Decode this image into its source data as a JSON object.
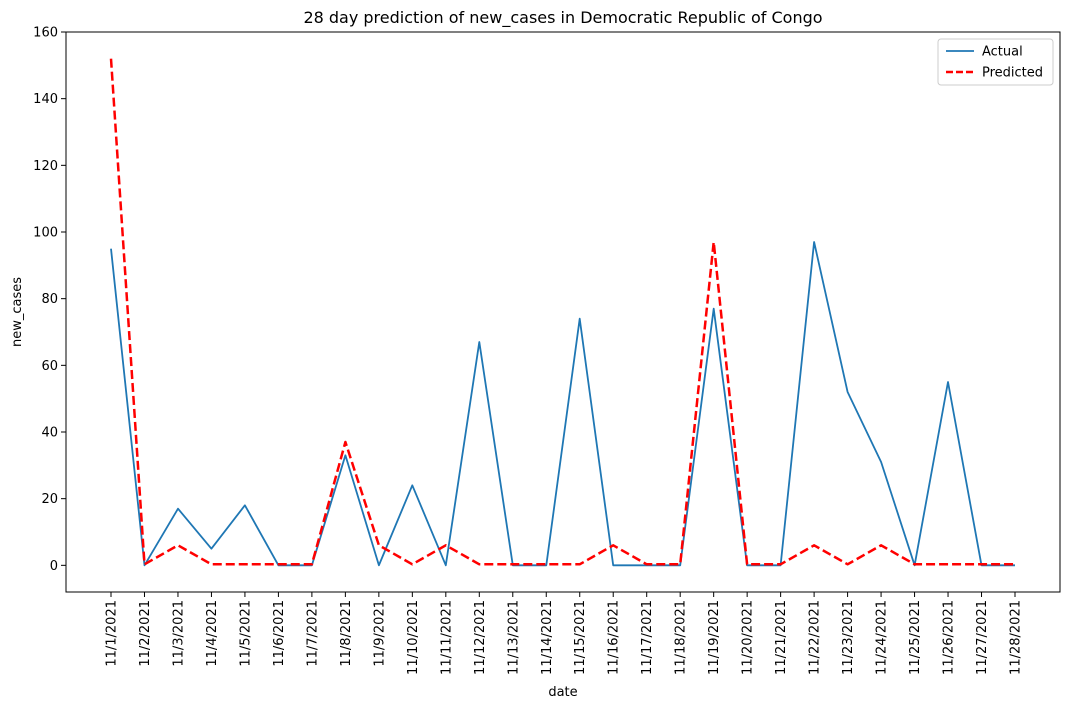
{
  "chart_data": {
    "type": "line",
    "title": "28 day prediction of new_cases in Democratic Republic of Congo",
    "xlabel": "date",
    "ylabel": "new_cases",
    "ylim": [
      -8,
      160
    ],
    "yticks": [
      0,
      20,
      40,
      60,
      80,
      100,
      120,
      140,
      160
    ],
    "grid": false,
    "legend_position": "top-right",
    "categories": [
      "11/1/2021",
      "11/2/2021",
      "11/3/2021",
      "11/4/2021",
      "11/5/2021",
      "11/6/2021",
      "11/7/2021",
      "11/8/2021",
      "11/9/2021",
      "11/10/2021",
      "11/11/2021",
      "11/12/2021",
      "11/13/2021",
      "11/14/2021",
      "11/15/2021",
      "11/16/2021",
      "11/17/2021",
      "11/18/2021",
      "11/19/2021",
      "11/20/2021",
      "11/21/2021",
      "11/22/2021",
      "11/23/2021",
      "11/24/2021",
      "11/25/2021",
      "11/26/2021",
      "11/27/2021",
      "11/28/2021"
    ],
    "series": [
      {
        "name": "Actual",
        "color": "#1f77b4",
        "style": "solid",
        "values": [
          95,
          0,
          17,
          5,
          18,
          0,
          0,
          33,
          0,
          24,
          0,
          67,
          0,
          0,
          74,
          0,
          0,
          0,
          77,
          0,
          0,
          97,
          52,
          31,
          0,
          55,
          0,
          0
        ]
      },
      {
        "name": "Predicted",
        "color": "#ff0000",
        "style": "dashed",
        "values": [
          152,
          0.3,
          6,
          0.3,
          0.3,
          0.3,
          0.3,
          37,
          6,
          0.3,
          6,
          0.3,
          0.3,
          0.3,
          0.3,
          6,
          0.3,
          0.3,
          97,
          0.3,
          0.3,
          6,
          0.3,
          6,
          0.3,
          0.3,
          0.3,
          0.3
        ]
      }
    ]
  }
}
